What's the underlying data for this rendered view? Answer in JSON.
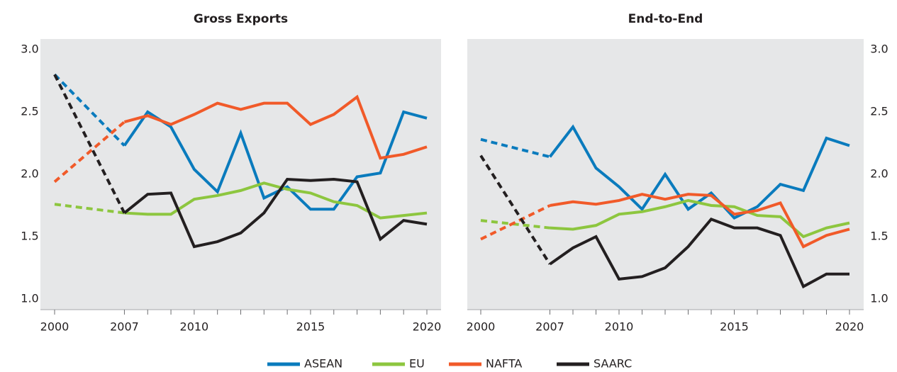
{
  "chart_data": [
    {
      "type": "line",
      "title": "Gross Exports",
      "y_axis_side": "left",
      "dashed_first_segment": true,
      "categories": [
        "2000",
        "2007",
        null,
        null,
        "2010",
        null,
        null,
        null,
        null,
        "2015",
        null,
        null,
        null,
        null,
        "2020"
      ],
      "ylim": [
        1.0,
        3.0
      ],
      "yticks": [
        {
          "value": 1.0,
          "label": "1.0"
        },
        {
          "value": 1.5,
          "label": "1.5"
        },
        {
          "value": 2.0,
          "label": "2.0"
        },
        {
          "value": 2.5,
          "label": "2.5"
        },
        {
          "value": 3.0,
          "label": "3.0"
        }
      ],
      "series": [
        {
          "name": "ASEAN",
          "color": "#0a7bbd",
          "values": [
            2.8,
            2.23,
            2.5,
            2.38,
            2.04,
            1.86,
            2.33,
            1.81,
            1.9,
            1.72,
            1.72,
            1.98,
            2.01,
            2.5,
            2.45
          ]
        },
        {
          "name": "EU",
          "color": "#8dc63f",
          "values": [
            1.76,
            1.69,
            1.68,
            1.68,
            1.8,
            1.83,
            1.87,
            1.93,
            1.88,
            1.85,
            1.78,
            1.75,
            1.65,
            1.67,
            1.69
          ]
        },
        {
          "name": "NAFTA",
          "color": "#f15a29",
          "values": [
            1.94,
            2.42,
            2.47,
            2.4,
            2.48,
            2.57,
            2.52,
            2.57,
            2.57,
            2.4,
            2.48,
            2.62,
            2.13,
            2.16,
            2.22
          ]
        },
        {
          "name": "SAARC",
          "color": "#231f20",
          "values": [
            2.8,
            1.69,
            1.84,
            1.85,
            1.42,
            1.46,
            1.53,
            1.69,
            1.96,
            1.95,
            1.96,
            1.94,
            1.48,
            1.63,
            1.6
          ]
        }
      ]
    },
    {
      "type": "line",
      "title": "End-to-End",
      "y_axis_side": "right",
      "dashed_first_segment": true,
      "categories": [
        "2000",
        "2007",
        null,
        null,
        "2010",
        null,
        null,
        null,
        null,
        "2015",
        null,
        null,
        null,
        null,
        "2020"
      ],
      "ylim": [
        1.0,
        3.0
      ],
      "yticks": [
        {
          "value": 1.0,
          "label": "1.0"
        },
        {
          "value": 1.5,
          "label": "1.5"
        },
        {
          "value": 2.0,
          "label": "2.0"
        },
        {
          "value": 2.5,
          "label": "2.5"
        },
        {
          "value": 3.0,
          "label": "3.0"
        }
      ],
      "series": [
        {
          "name": "ASEAN",
          "color": "#0a7bbd",
          "values": [
            2.28,
            2.14,
            2.38,
            2.05,
            1.9,
            1.72,
            2.0,
            1.72,
            1.85,
            1.65,
            1.74,
            1.92,
            1.87,
            2.29,
            2.23
          ]
        },
        {
          "name": "EU",
          "color": "#8dc63f",
          "values": [
            1.63,
            1.57,
            1.56,
            1.59,
            1.68,
            1.7,
            1.74,
            1.79,
            1.75,
            1.74,
            1.67,
            1.66,
            1.5,
            1.57,
            1.61
          ]
        },
        {
          "name": "NAFTA",
          "color": "#f15a29",
          "values": [
            1.48,
            1.75,
            1.78,
            1.76,
            1.79,
            1.84,
            1.8,
            1.84,
            1.83,
            1.68,
            1.71,
            1.77,
            1.42,
            1.51,
            1.56
          ]
        },
        {
          "name": "SAARC",
          "color": "#231f20",
          "values": [
            2.15,
            1.28,
            1.41,
            1.5,
            1.16,
            1.18,
            1.25,
            1.42,
            1.64,
            1.57,
            1.57,
            1.51,
            1.1,
            1.2,
            1.2
          ]
        }
      ]
    }
  ]
}
